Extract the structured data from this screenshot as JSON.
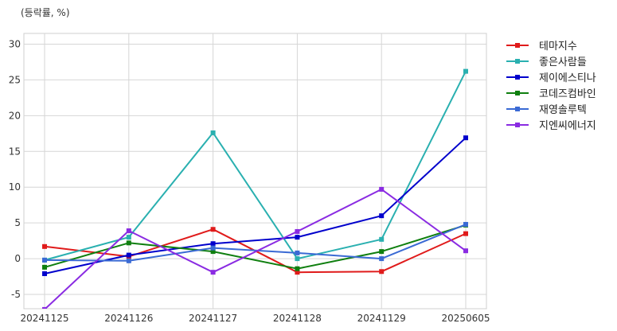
{
  "chart_data": {
    "type": "line",
    "unit_label": "(등락률, %)",
    "x": [
      "20241125",
      "20241126",
      "20241127",
      "20241128",
      "20241129",
      "20250605"
    ],
    "ylim": [
      -7,
      31.5
    ],
    "yticks": [
      -5,
      0,
      5,
      10,
      15,
      20,
      25,
      30
    ],
    "grid": true,
    "legend_position": "outside-right",
    "series": [
      {
        "name": "테마지수",
        "color": "#e01b1b",
        "values": [
          1.7,
          0.3,
          4.1,
          -1.9,
          -1.8,
          3.5
        ]
      },
      {
        "name": "좋은사람들",
        "color": "#2ab0b0",
        "values": [
          -0.2,
          3.0,
          17.6,
          0.0,
          2.7,
          26.2
        ]
      },
      {
        "name": "제이에스티나",
        "color": "#0000cc",
        "values": [
          -2.1,
          0.5,
          2.1,
          3.0,
          6.0,
          16.9
        ]
      },
      {
        "name": "코데즈컴바인",
        "color": "#0f7f0f",
        "values": [
          -1.2,
          2.2,
          1.0,
          -1.4,
          1.0,
          4.7
        ]
      },
      {
        "name": "재영솔루텍",
        "color": "#3a6ad4",
        "values": [
          -0.2,
          -0.3,
          1.5,
          0.8,
          0.0,
          4.8
        ]
      },
      {
        "name": "지엔씨에너지",
        "color": "#8a2be2",
        "values": [
          -7.1,
          3.9,
          -1.9,
          3.8,
          9.7,
          1.1
        ]
      }
    ]
  }
}
